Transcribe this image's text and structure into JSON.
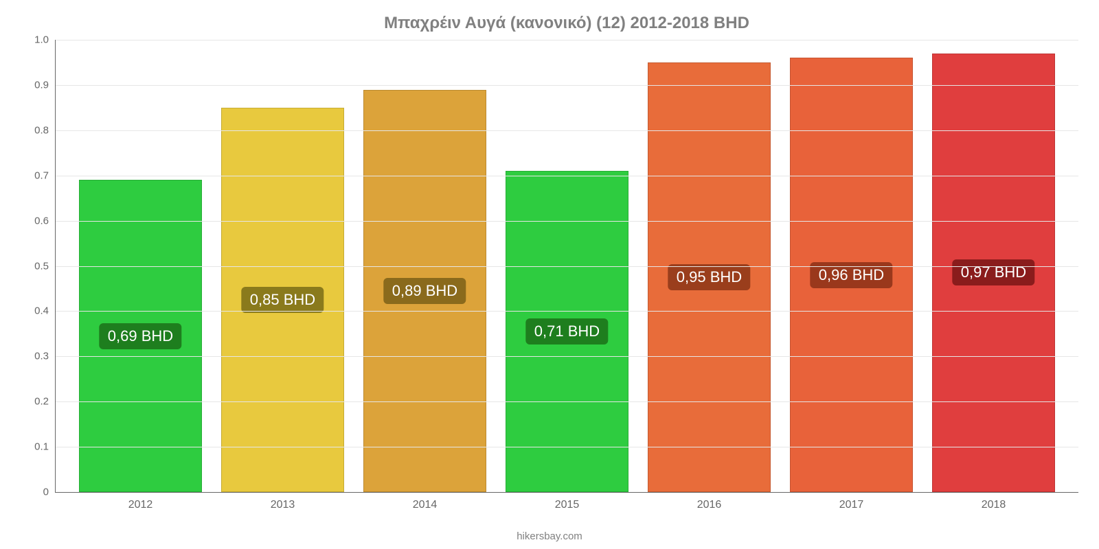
{
  "chart": {
    "type": "bar",
    "title": "Μπαχρέιν Αυγά (κανονικό) (12) 2012-2018 BHD",
    "title_color": "#808080",
    "title_fontsize": 24,
    "background_color": "#ffffff",
    "grid_color": "#e6e6e6",
    "axis_color": "#666666",
    "tick_label_color": "#666666",
    "tick_fontsize": 15,
    "xtick_fontsize": 16,
    "bar_label_fontsize": 22,
    "bar_label_text_color": "#ffffff",
    "bar_width_pct": 86,
    "ylim": [
      0,
      1.0
    ],
    "yticks": [
      {
        "v": 0,
        "label": "0"
      },
      {
        "v": 0.1,
        "label": "0.1"
      },
      {
        "v": 0.2,
        "label": "0.2"
      },
      {
        "v": 0.3,
        "label": "0.3"
      },
      {
        "v": 0.4,
        "label": "0.4"
      },
      {
        "v": 0.5,
        "label": "0.5"
      },
      {
        "v": 0.6,
        "label": "0.6"
      },
      {
        "v": 0.7,
        "label": "0.7"
      },
      {
        "v": 0.8,
        "label": "0.8"
      },
      {
        "v": 0.9,
        "label": "0.9"
      },
      {
        "v": 1.0,
        "label": "1.0"
      }
    ],
    "categories": [
      "2012",
      "2013",
      "2014",
      "2015",
      "2016",
      "2017",
      "2018"
    ],
    "series": [
      {
        "value": 0.69,
        "label": "0,69 BHD",
        "bar_color": "#2ecc40",
        "label_bg": "#1e7e1e"
      },
      {
        "value": 0.85,
        "label": "0,85 BHD",
        "bar_color": "#e8c93e",
        "label_bg": "#8a7a1c"
      },
      {
        "value": 0.89,
        "label": "0,89 BHD",
        "bar_color": "#dca33a",
        "label_bg": "#8a6a1c"
      },
      {
        "value": 0.71,
        "label": "0,71 BHD",
        "bar_color": "#2ecc40",
        "label_bg": "#1e7e1e"
      },
      {
        "value": 0.95,
        "label": "0,95 BHD",
        "bar_color": "#e86c3a",
        "label_bg": "#9a3e1c"
      },
      {
        "value": 0.96,
        "label": "0,96 BHD",
        "bar_color": "#e8623a",
        "label_bg": "#9a381c"
      },
      {
        "value": 0.97,
        "label": "0,97 BHD",
        "bar_color": "#e03e3e",
        "label_bg": "#8a1c1c"
      }
    ],
    "footer": "hikersbay.com",
    "footer_color": "#808080",
    "footer_fontsize": 15
  }
}
